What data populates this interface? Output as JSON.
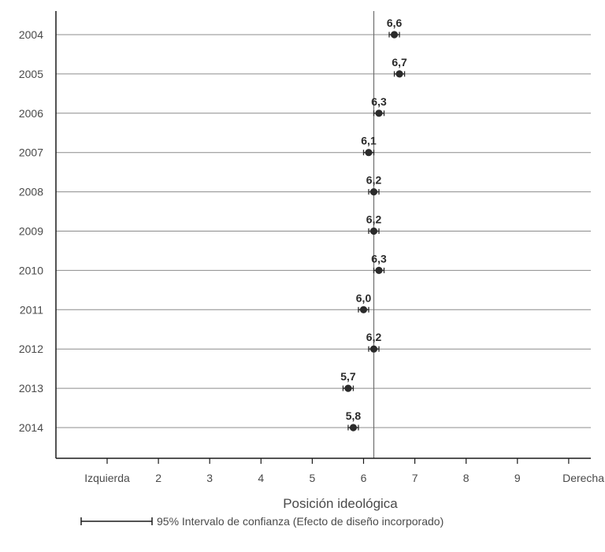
{
  "chart_data": {
    "type": "scatter",
    "orientation": "horizontal",
    "categories": [
      "2004",
      "2005",
      "2006",
      "2007",
      "2008",
      "2009",
      "2010",
      "2011",
      "2012",
      "2013",
      "2014"
    ],
    "values": [
      6.6,
      6.7,
      6.3,
      6.1,
      6.2,
      6.2,
      6.3,
      6.0,
      6.2,
      5.7,
      5.8
    ],
    "value_labels": [
      "6,6",
      "6,7",
      "6,3",
      "6,1",
      "6,2",
      "6,2",
      "6,3",
      "6,0",
      "6,2",
      "5,7",
      "5,8"
    ],
    "ci_half_width": 0.1,
    "reference_line": 6.2,
    "xlabel": "Posición ideológica",
    "x_ticks": [
      {
        "value": 1,
        "label": "Izquierda"
      },
      {
        "value": 2,
        "label": "2"
      },
      {
        "value": 3,
        "label": "3"
      },
      {
        "value": 4,
        "label": "4"
      },
      {
        "value": 5,
        "label": "5"
      },
      {
        "value": 6,
        "label": "6"
      },
      {
        "value": 7,
        "label": "7"
      },
      {
        "value": 8,
        "label": "8"
      },
      {
        "value": 9,
        "label": "9"
      },
      {
        "value": 10,
        "label": "Derecha"
      }
    ],
    "xlim": [
      0,
      10.45
    ],
    "grid": "horizontal",
    "legend": {
      "placement": "bottom",
      "label": "95% Intervalo de confianza (Efecto de diseño incorporado)"
    },
    "colors": {
      "point": "#2b2b2b",
      "grid": "#8c8c8c",
      "axis": "#1a1a1a",
      "reference": "#6e6e6e"
    }
  }
}
